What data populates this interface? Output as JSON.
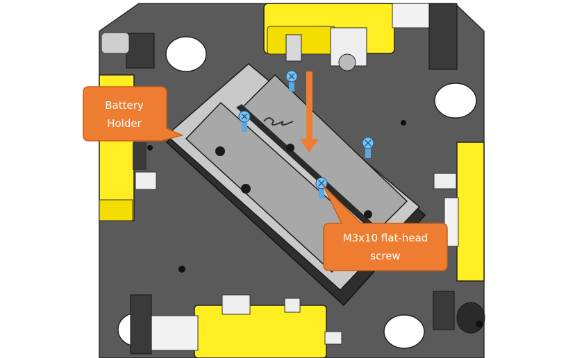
{
  "callouts": {
    "battery": {
      "line1": "Battery",
      "line2": "Holder"
    },
    "screw": {
      "line1": "M3x10 flat-head",
      "line2": "screw"
    }
  },
  "colors": {
    "plate": "#5a5a5a",
    "motor": "#ffee22",
    "holder_body": "#c9c9c9",
    "holder_wall": "#2e2e2e",
    "callout": "#ef7d31",
    "arrow": "#ef7d31",
    "screw": "#5ba8e0"
  }
}
